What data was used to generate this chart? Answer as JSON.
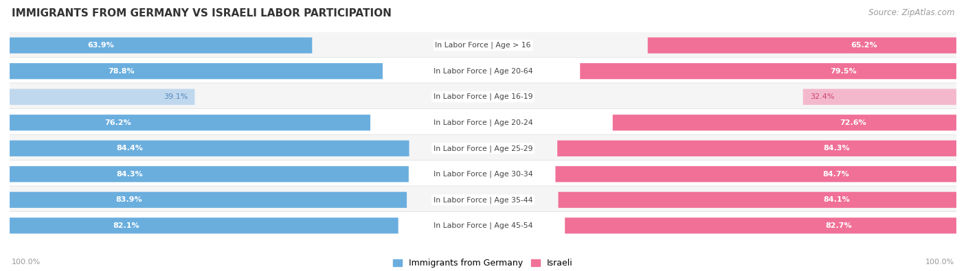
{
  "title": "IMMIGRANTS FROM GERMANY VS ISRAELI LABOR PARTICIPATION",
  "source": "Source: ZipAtlas.com",
  "categories": [
    "In Labor Force | Age > 16",
    "In Labor Force | Age 20-64",
    "In Labor Force | Age 16-19",
    "In Labor Force | Age 20-24",
    "In Labor Force | Age 25-29",
    "In Labor Force | Age 30-34",
    "In Labor Force | Age 35-44",
    "In Labor Force | Age 45-54"
  ],
  "germany_values": [
    63.9,
    78.8,
    39.1,
    76.2,
    84.4,
    84.3,
    83.9,
    82.1
  ],
  "israeli_values": [
    65.2,
    79.5,
    32.4,
    72.6,
    84.3,
    84.7,
    84.1,
    82.7
  ],
  "germany_color": "#6AAEDE",
  "germany_color_light": "#C0D8EE",
  "israeli_color": "#F07098",
  "israeli_color_light": "#F4B8CC",
  "title_color": "#333333",
  "legend_germany": "Immigrants from Germany",
  "legend_israeli": "Israeli",
  "bg_bar_color": "#E8E8E8",
  "row_bg_even": "#F5F5F5",
  "row_bg_odd": "#FFFFFF"
}
